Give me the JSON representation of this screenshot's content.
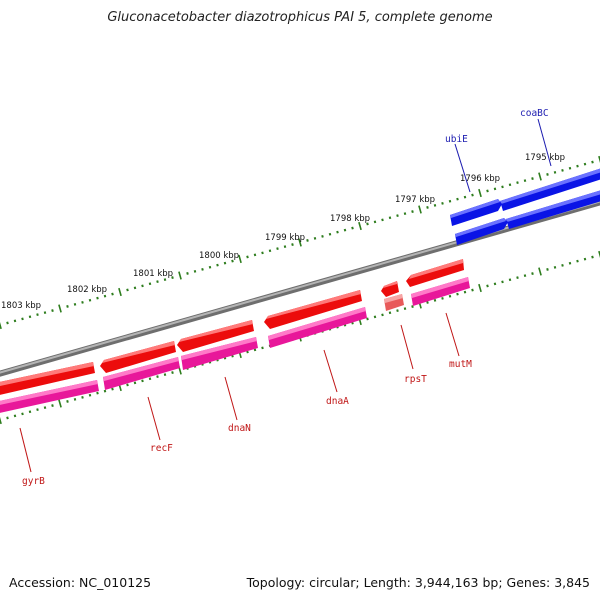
{
  "title": "Gluconacetobacter diazotrophicus PAI 5, complete genome",
  "footer": {
    "accession": "Accession: NC_010125",
    "summary": "Topology: circular; Length: 3,944,163 bp; Genes: 3,845"
  },
  "colors": {
    "backbone": "#8a8a8a",
    "ticks": "#2e7d1e",
    "forward_gene": "#0a14e6",
    "reverse_gene": "#ec0c0c",
    "reverse_cds": "#e8179a",
    "rna_gene": "#e85a5a",
    "rna_feature": "#f08f8f",
    "forward_label": "#1c1cb0",
    "reverse_label": "#c01616"
  },
  "kbp_labels": [
    "1795 kbp",
    "1796 kbp",
    "1797 kbp",
    "1798 kbp",
    "1799 kbp",
    "1800 kbp",
    "1801 kbp",
    "1802 kbp",
    "1803 kbp"
  ],
  "genes": [
    {
      "name": "coaBC",
      "strand": "forward"
    },
    {
      "name": "ubiE",
      "strand": "forward"
    },
    {
      "name": "mutM",
      "strand": "reverse"
    },
    {
      "name": "rpsT",
      "strand": "reverse"
    },
    {
      "name": "dnaA",
      "strand": "reverse"
    },
    {
      "name": "dnaN",
      "strand": "reverse"
    },
    {
      "name": "recF",
      "strand": "reverse"
    },
    {
      "name": "gyrB",
      "strand": "reverse"
    }
  ]
}
